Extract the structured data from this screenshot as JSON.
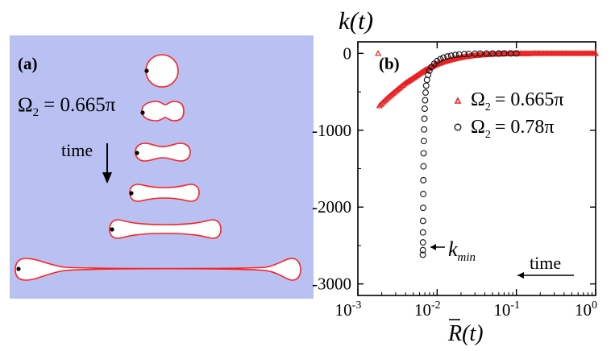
{
  "panel_a": {
    "label": "(a)",
    "omega_symbol": "Ω",
    "omega_sub": "2",
    "omega_value": "= 0.665π",
    "time_label": "time",
    "bg_color": "#b9c1f3",
    "outline_color": "#ff2020"
  },
  "chart_data": {
    "type": "scatter",
    "label": "(b)",
    "title": "k(t)",
    "xlabel": "R(t)",
    "x_scale": "log",
    "xlim": [
      0.001,
      1
    ],
    "ylim": [
      -3150,
      150
    ],
    "x_ticks": [
      {
        "base": "10",
        "exp": "-3"
      },
      {
        "base": "10",
        "exp": "-2"
      },
      {
        "base": "10",
        "exp": "-1"
      },
      {
        "base": "10",
        "exp": "0"
      }
    ],
    "y_ticks": [
      "0",
      "-1000",
      "-2000",
      "-3000"
    ],
    "y_tick_values": [
      0,
      -1000,
      -2000,
      -3000
    ],
    "legend_position": "right",
    "series": [
      {
        "symbol": "Ω",
        "sub": "2",
        "value_text": "= 0.665π",
        "marker": "triangle",
        "color": "#e82020",
        "x": [
          0.0018,
          0.0022,
          0.0027,
          0.0033,
          0.004,
          0.005,
          0.006,
          0.007,
          0.0085,
          0.01,
          0.012,
          0.015,
          0.018,
          0.022,
          0.027,
          0.033,
          0.04,
          0.05,
          0.06,
          0.07,
          0.085,
          0.1,
          0.12,
          0.15,
          0.18,
          0.22,
          0.27,
          0.33,
          0.4,
          0.5,
          0.6,
          0.7,
          0.85,
          1.0
        ],
        "y": [
          -700,
          -610,
          -530,
          -455,
          -385,
          -320,
          -265,
          -218,
          -175,
          -140,
          -110,
          -82,
          -62,
          -45,
          -32,
          -23,
          -16,
          -11,
          -8,
          -6,
          -4,
          -3,
          -2,
          -1.5,
          -1,
          -0.7,
          -0.5,
          -0.3,
          -0.2,
          -0.1,
          -0.1,
          0,
          0,
          0
        ]
      },
      {
        "symbol": "Ω",
        "sub": "2",
        "value_text": "= 0.78π",
        "marker": "circle",
        "color": "#111111",
        "x": [
          0.0066,
          0.00661,
          0.00662,
          0.00663,
          0.00664,
          0.00666,
          0.00668,
          0.0067,
          0.00673,
          0.00676,
          0.0068,
          0.00685,
          0.0069,
          0.00697,
          0.00705,
          0.00715,
          0.00728,
          0.00745,
          0.0077,
          0.008,
          0.0085,
          0.0092,
          0.01,
          0.011,
          0.012,
          0.0135,
          0.015,
          0.017,
          0.019,
          0.022,
          0.025,
          0.03,
          0.035,
          0.042,
          0.05,
          0.06,
          0.07,
          0.085,
          0.1
        ],
        "y": [
          -2620,
          -2560,
          -2460,
          -2330,
          -2180,
          -2010,
          -1830,
          -1650,
          -1470,
          -1300,
          -1140,
          -990,
          -850,
          -720,
          -610,
          -510,
          -420,
          -345,
          -280,
          -225,
          -175,
          -135,
          -100,
          -75,
          -55,
          -40,
          -29,
          -20,
          -14,
          -9,
          -6,
          -4,
          -2.5,
          -1.5,
          -1,
          -0.5,
          -0.3,
          -0.2,
          -0.1
        ]
      }
    ],
    "annotations": [
      {
        "base": "k",
        "sub": "min"
      },
      {
        "text": "time"
      }
    ]
  }
}
